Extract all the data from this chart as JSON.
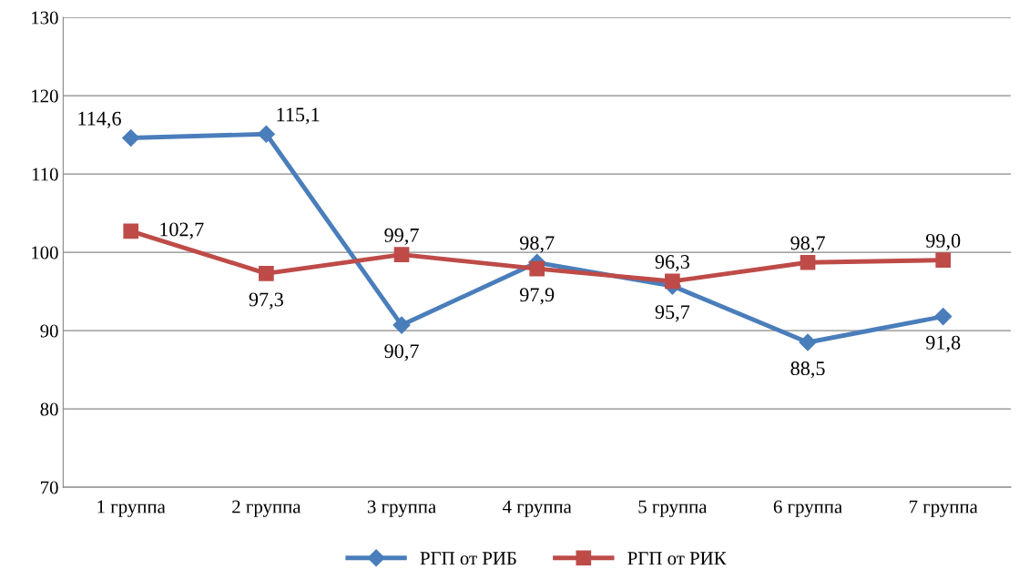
{
  "chart_data": {
    "type": "line",
    "categories": [
      "1 группа",
      "2 группа",
      "3 группа",
      "4 группа",
      "5 группа",
      "6 группа",
      "7 группа"
    ],
    "series": [
      {
        "name": "РГП от РИБ",
        "color": "#4a7ebb",
        "marker": "diamond",
        "values": [
          114.6,
          115.1,
          90.7,
          98.7,
          95.7,
          88.5,
          91.8
        ],
        "value_labels": [
          "114,6",
          "115,1",
          "90,7",
          "98,7",
          "95,7",
          "88,5",
          "91,8"
        ]
      },
      {
        "name": "РГП от РИК",
        "color": "#be4b48",
        "marker": "square",
        "values": [
          102.7,
          97.3,
          99.7,
          97.9,
          96.3,
          98.7,
          99.0
        ],
        "value_labels": [
          "102,7",
          "97,3",
          "99,7",
          "97,9",
          "96,3",
          "98,7",
          "99,0"
        ]
      }
    ],
    "ylim": [
      70,
      130
    ],
    "yticks": [
      70,
      80,
      90,
      100,
      110,
      120,
      130
    ],
    "grid": "y",
    "legend": "bottom",
    "line_style": "solid"
  }
}
